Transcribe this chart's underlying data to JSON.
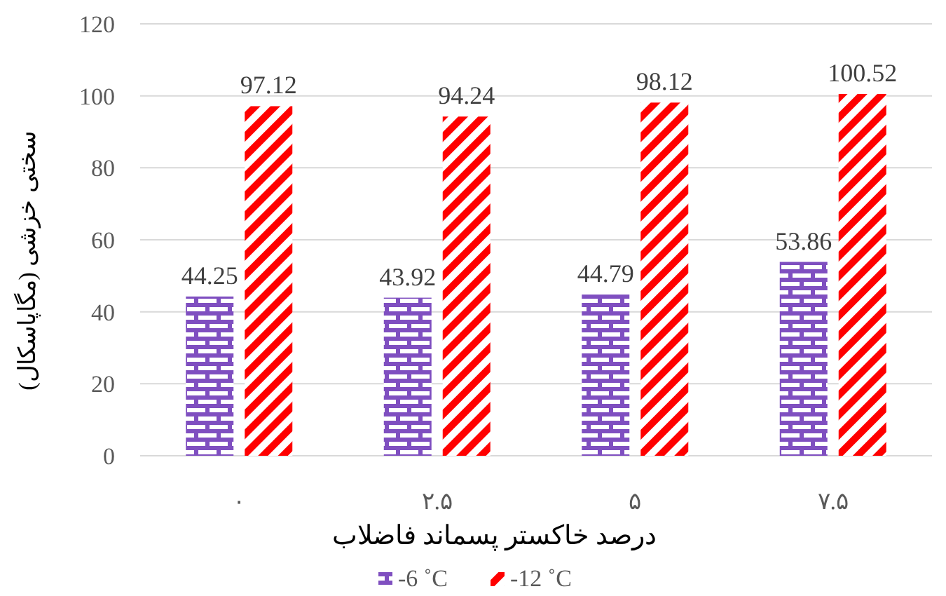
{
  "chart_data": {
    "type": "bar",
    "xlabel": "درصد خاکستر پسماند فاضلاب",
    "ylabel": "سختی خزشی (مگاپاسکال)",
    "categories": [
      "۰",
      "۲.۵",
      "۵",
      "۷.۵"
    ],
    "series": [
      {
        "name": "-6 ˚C",
        "color": "#7f4fc0",
        "values": [
          44.25,
          43.92,
          44.79,
          53.86
        ]
      },
      {
        "name": "-12 ˚C",
        "color": "#ff0000",
        "values": [
          97.12,
          94.24,
          98.12,
          100.52
        ]
      }
    ],
    "ylim": [
      0,
      120
    ],
    "yticks": [
      0,
      20,
      40,
      60,
      80,
      100,
      120
    ],
    "grid": "y",
    "legend": "bottom",
    "data_labels": true
  }
}
